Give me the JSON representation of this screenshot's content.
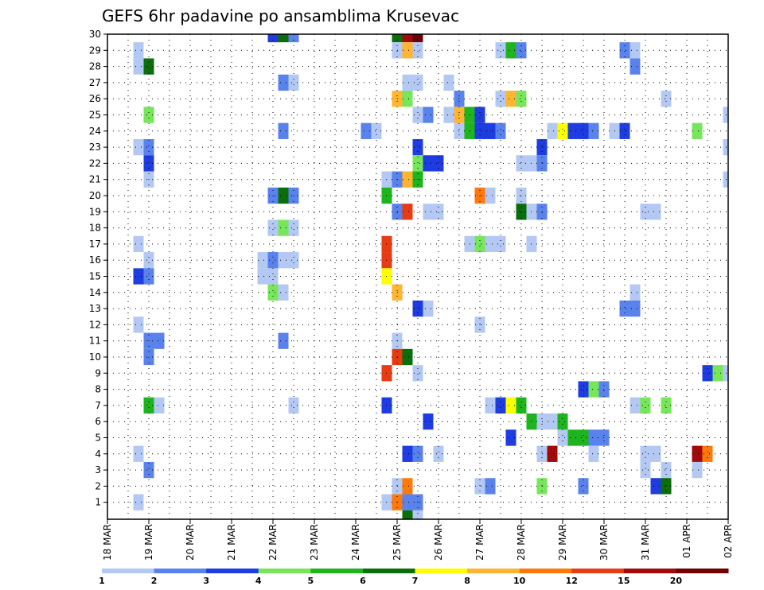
{
  "chart_data": {
    "type": "heatmap",
    "title": "GEFS 6hr padavine po ansamblima Krusevac",
    "x_labels": [
      "18 MAR",
      "19 MAR",
      "20 MAR",
      "21 MAR",
      "22 MAR",
      "23 MAR",
      "24 MAR",
      "25 MAR",
      "26 MAR",
      "27 MAR",
      "28 MAR",
      "29 MAR",
      "30 MAR",
      "31 MAR",
      "01 APR",
      "02 APR"
    ],
    "y_labels": [
      "1",
      "2",
      "3",
      "4",
      "5",
      "6",
      "7",
      "8",
      "9",
      "10",
      "11",
      "12",
      "13",
      "14",
      "15",
      "16",
      "17",
      "18",
      "19",
      "20",
      "21",
      "22",
      "23",
      "24",
      "25",
      "26",
      "27",
      "28",
      "29",
      "30"
    ],
    "y_range": [
      0,
      30
    ],
    "x_range_days": [
      0,
      15
    ],
    "cell_width_days": 0.25,
    "grid": "dotted",
    "colorbar": {
      "labels": [
        "1",
        "2",
        "3",
        "4",
        "5",
        "6",
        "7",
        "8",
        "10",
        "12",
        "15",
        "20"
      ],
      "colors": [
        "#b4c8f4",
        "#5a82ec",
        "#1e3ce0",
        "#78e65a",
        "#1eb41e",
        "#0a6e0a",
        "#ffff00",
        "#ffb432",
        "#ff780a",
        "#e63c14",
        "#a00a0a",
        "#6e0000"
      ]
    },
    "cells": [
      [
        4,
        30,
        3
      ],
      [
        4.25,
        30,
        6
      ],
      [
        4.5,
        30,
        2
      ],
      [
        7,
        30,
        6
      ],
      [
        7.25,
        30,
        11
      ],
      [
        7.5,
        30,
        12
      ],
      [
        0.75,
        29,
        1
      ],
      [
        7,
        29,
        1
      ],
      [
        7.25,
        29,
        8
      ],
      [
        7.5,
        29,
        1
      ],
      [
        9.5,
        29,
        1
      ],
      [
        9.75,
        29,
        5
      ],
      [
        10,
        29,
        2
      ],
      [
        12.5,
        29,
        2
      ],
      [
        12.75,
        29,
        1
      ],
      [
        0.75,
        28,
        1
      ],
      [
        1,
        28,
        6
      ],
      [
        12.75,
        28,
        2
      ],
      [
        4.25,
        27,
        2
      ],
      [
        4.5,
        27,
        1
      ],
      [
        7.25,
        27,
        1
      ],
      [
        7.5,
        27,
        1
      ],
      [
        8.25,
        27,
        1
      ],
      [
        7,
        26,
        8
      ],
      [
        7.25,
        26,
        4
      ],
      [
        8.5,
        26,
        2
      ],
      [
        9.5,
        26,
        1
      ],
      [
        9.75,
        26,
        8
      ],
      [
        10,
        26,
        4
      ],
      [
        13.5,
        26,
        1
      ],
      [
        1,
        25,
        4
      ],
      [
        7.5,
        25,
        1
      ],
      [
        7.75,
        25,
        2
      ],
      [
        8.25,
        25,
        1
      ],
      [
        8.5,
        25,
        8
      ],
      [
        8.75,
        25,
        5
      ],
      [
        9,
        25,
        3
      ],
      [
        15,
        25,
        1
      ],
      [
        4.25,
        24,
        2
      ],
      [
        6.25,
        24,
        2
      ],
      [
        6.5,
        24,
        1
      ],
      [
        8.5,
        24,
        1
      ],
      [
        8.75,
        24,
        5
      ],
      [
        9,
        24,
        3
      ],
      [
        9.25,
        24,
        3
      ],
      [
        9.5,
        24,
        2
      ],
      [
        10.75,
        24,
        1
      ],
      [
        11,
        24,
        7
      ],
      [
        11.25,
        24,
        3
      ],
      [
        11.5,
        24,
        3
      ],
      [
        11.75,
        24,
        2
      ],
      [
        12.25,
        24,
        1
      ],
      [
        12.5,
        24,
        3
      ],
      [
        14.25,
        24,
        4
      ],
      [
        0.75,
        23,
        1
      ],
      [
        1,
        23,
        2
      ],
      [
        7.5,
        23,
        3
      ],
      [
        10.5,
        23,
        3
      ],
      [
        15,
        23,
        1
      ],
      [
        1,
        22,
        3
      ],
      [
        7.5,
        22,
        4
      ],
      [
        7.75,
        22,
        3
      ],
      [
        8,
        22,
        3
      ],
      [
        10,
        22,
        1
      ],
      [
        10.25,
        22,
        1
      ],
      [
        10.5,
        22,
        2
      ],
      [
        1,
        21,
        1
      ],
      [
        6.75,
        21,
        1
      ],
      [
        7,
        21,
        2
      ],
      [
        7.25,
        21,
        8
      ],
      [
        7.5,
        21,
        5
      ],
      [
        15,
        21,
        1
      ],
      [
        4,
        20,
        2
      ],
      [
        4.25,
        20,
        6
      ],
      [
        4.5,
        20,
        2
      ],
      [
        6.75,
        20,
        5
      ],
      [
        9,
        20,
        9
      ],
      [
        9.25,
        20,
        1
      ],
      [
        10,
        20,
        1
      ],
      [
        7,
        19,
        2
      ],
      [
        7.25,
        19,
        10
      ],
      [
        7.75,
        19,
        1
      ],
      [
        8,
        19,
        1
      ],
      [
        10,
        19,
        6
      ],
      [
        10.25,
        19,
        1
      ],
      [
        10.5,
        19,
        2
      ],
      [
        13,
        19,
        1
      ],
      [
        13.25,
        19,
        1
      ],
      [
        4,
        18,
        1
      ],
      [
        4.25,
        18,
        4
      ],
      [
        4.5,
        18,
        1
      ],
      [
        0.75,
        17,
        1
      ],
      [
        6.75,
        17,
        10
      ],
      [
        8.75,
        17,
        1
      ],
      [
        9,
        17,
        4
      ],
      [
        9.25,
        17,
        1
      ],
      [
        9.5,
        17,
        1
      ],
      [
        10.25,
        17,
        1
      ],
      [
        1,
        16,
        1
      ],
      [
        3.75,
        16,
        1
      ],
      [
        4,
        16,
        2
      ],
      [
        4.25,
        16,
        1
      ],
      [
        4.5,
        16,
        1
      ],
      [
        6.75,
        16,
        10
      ],
      [
        0.75,
        15,
        3
      ],
      [
        1,
        15,
        2
      ],
      [
        3.75,
        15,
        1
      ],
      [
        4,
        15,
        1
      ],
      [
        6.75,
        15,
        7
      ],
      [
        4,
        14,
        4
      ],
      [
        4.25,
        14,
        1
      ],
      [
        7,
        14,
        8
      ],
      [
        12.75,
        14,
        1
      ],
      [
        7.5,
        13,
        3
      ],
      [
        7.75,
        13,
        1
      ],
      [
        12.5,
        13,
        2
      ],
      [
        12.75,
        13,
        2
      ],
      [
        0.75,
        12,
        1
      ],
      [
        9,
        12,
        1
      ],
      [
        1,
        11,
        2
      ],
      [
        1.25,
        11,
        2
      ],
      [
        4.25,
        11,
        2
      ],
      [
        7,
        11,
        1
      ],
      [
        1,
        10,
        2
      ],
      [
        7,
        10,
        10
      ],
      [
        7.25,
        10,
        6
      ],
      [
        6.75,
        9,
        10
      ],
      [
        7.5,
        9,
        1
      ],
      [
        14.5,
        9,
        3
      ],
      [
        14.75,
        9,
        4
      ],
      [
        15,
        9,
        1
      ],
      [
        11.5,
        8,
        3
      ],
      [
        11.75,
        8,
        4
      ],
      [
        12,
        8,
        2
      ],
      [
        1,
        7,
        5
      ],
      [
        1.25,
        7,
        1
      ],
      [
        4.5,
        7,
        1
      ],
      [
        6.75,
        7,
        3
      ],
      [
        9.25,
        7,
        1
      ],
      [
        9.5,
        7,
        3
      ],
      [
        9.75,
        7,
        7
      ],
      [
        10,
        7,
        5
      ],
      [
        12.75,
        7,
        1
      ],
      [
        13,
        7,
        4
      ],
      [
        13.5,
        7,
        4
      ],
      [
        7.75,
        6,
        3
      ],
      [
        10.25,
        6,
        5
      ],
      [
        10.5,
        6,
        1
      ],
      [
        10.75,
        6,
        1
      ],
      [
        11,
        6,
        5
      ],
      [
        9.75,
        5,
        3
      ],
      [
        11,
        5,
        1
      ],
      [
        11.25,
        5,
        5
      ],
      [
        11.5,
        5,
        5
      ],
      [
        11.75,
        5,
        2
      ],
      [
        12,
        5,
        2
      ],
      [
        0.75,
        4,
        1
      ],
      [
        7.25,
        4,
        3
      ],
      [
        7.5,
        4,
        2
      ],
      [
        8,
        4,
        1
      ],
      [
        10.5,
        4,
        1
      ],
      [
        10.75,
        4,
        11
      ],
      [
        11.75,
        4,
        1
      ],
      [
        13,
        4,
        1
      ],
      [
        13.25,
        4,
        1
      ],
      [
        14.25,
        4,
        11
      ],
      [
        14.5,
        4,
        9
      ],
      [
        1,
        3,
        2
      ],
      [
        13,
        3,
        1
      ],
      [
        13.5,
        3,
        1
      ],
      [
        14.25,
        3,
        1
      ],
      [
        7,
        2,
        1
      ],
      [
        7.25,
        2,
        9
      ],
      [
        9,
        2,
        1
      ],
      [
        9.25,
        2,
        2
      ],
      [
        10.5,
        2,
        4
      ],
      [
        11.5,
        2,
        2
      ],
      [
        13.25,
        2,
        3
      ],
      [
        13.5,
        2,
        6
      ],
      [
        0.75,
        1,
        1
      ],
      [
        6.75,
        1,
        1
      ],
      [
        7,
        1,
        9
      ],
      [
        7.25,
        1,
        2
      ],
      [
        7.5,
        1,
        2
      ],
      [
        7.25,
        0,
        6
      ],
      [
        7.5,
        0,
        1
      ]
    ]
  }
}
